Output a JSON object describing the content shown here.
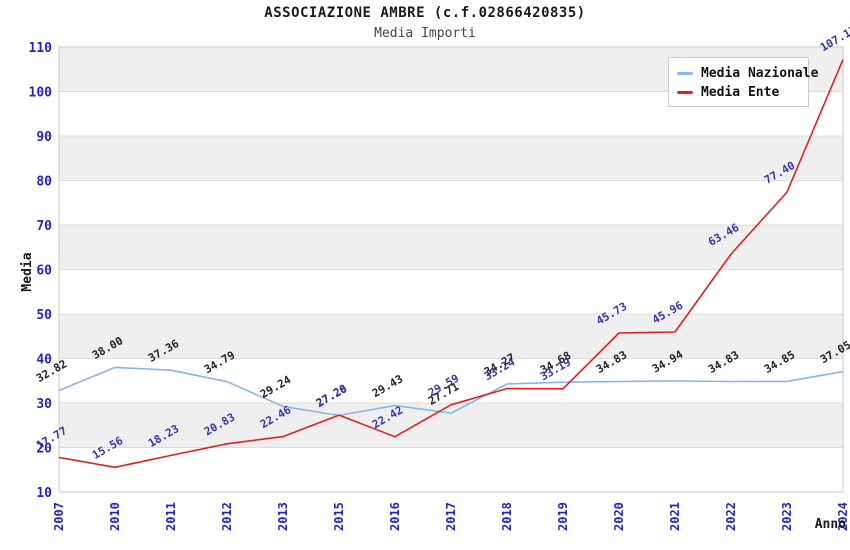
{
  "header": {
    "title": "ASSOCIAZIONE AMBRE (c.f.02866420835)",
    "subtitle": "Media Importi"
  },
  "legend": {
    "position": "top-right"
  },
  "chart_data": {
    "type": "line",
    "title": "ASSOCIAZIONE AMBRE (c.f.02866420835)",
    "subtitle": "Media Importi",
    "xlabel": "Anno",
    "ylabel": "Media",
    "x": [
      2007,
      2010,
      2011,
      2012,
      2013,
      2015,
      2016,
      2017,
      2018,
      2019,
      2020,
      2021,
      2022,
      2023,
      2024
    ],
    "series": [
      {
        "name": "Media Nazionale",
        "color": "#85B7E4",
        "label_color": "#222222",
        "values": [
          32.82,
          38.0,
          37.36,
          34.79,
          29.24,
          27.2,
          29.43,
          27.71,
          34.27,
          34.68,
          34.83,
          34.94,
          34.83,
          34.85,
          37.05
        ]
      },
      {
        "name": "Media Ente",
        "color": "#E02020",
        "label_color": "#3434B2",
        "values": [
          17.77,
          15.56,
          18.23,
          20.83,
          22.46,
          27.28,
          22.42,
          29.59,
          33.24,
          33.19,
          45.73,
          45.96,
          63.46,
          77.4,
          107.17
        ]
      }
    ],
    "ylim": [
      10,
      110
    ],
    "ytick_step": 10,
    "yticks": [
      10,
      20,
      30,
      40,
      50,
      60,
      70,
      80,
      90,
      100,
      110
    ],
    "grid": "horizontal-bands",
    "band_colors": [
      "#EFEFEF",
      "#FFFFFF"
    ],
    "gridline_color": "#DCDCDC",
    "border_color": "#C8C8C8",
    "tick_color": "#2222CC",
    "axis_title_color": "#1a1a1a",
    "legend_position": "top-right"
  }
}
